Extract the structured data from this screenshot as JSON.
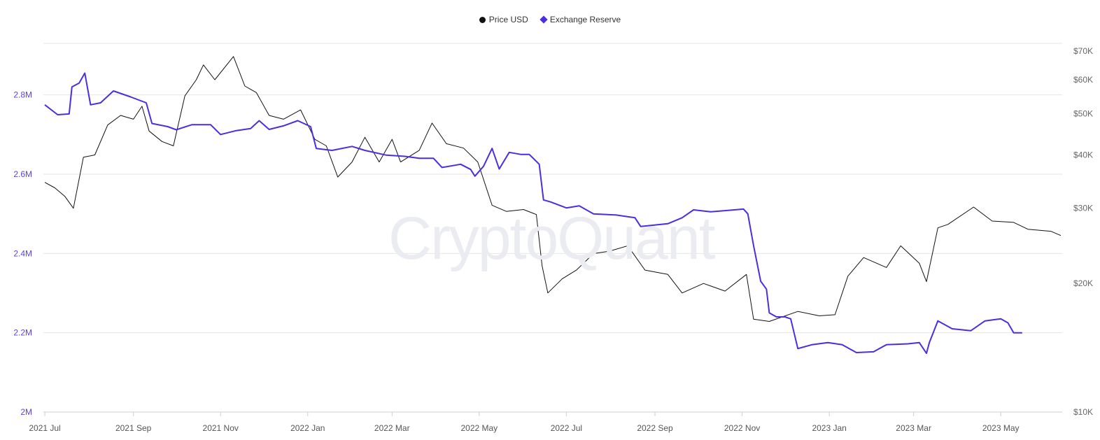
{
  "colors": {
    "price": "#111111",
    "reserve": "#4a2ee0",
    "grid": "#e6e6e6",
    "left_axis_text": "#5b45d4",
    "right_axis_text": "#666666",
    "x_axis_text": "#555555"
  },
  "legend": {
    "price_label": "Price USD",
    "reserve_label": "Exchange Reserve"
  },
  "watermark": "CryptoQuant",
  "chart_data": {
    "type": "line",
    "title": "",
    "x_ticks": [
      "2021 Jul",
      "2021 Sep",
      "2021 Nov",
      "2022 Jan",
      "2022 Mar",
      "2022 May",
      "2022 Jul",
      "2022 Sep",
      "2022 Nov",
      "2023 Jan",
      "2023 Mar",
      "2023 May"
    ],
    "x_tick_dates": [
      "2021-07-01",
      "2021-09-01",
      "2021-11-01",
      "2022-01-01",
      "2022-03-01",
      "2022-05-01",
      "2022-07-01",
      "2022-09-01",
      "2022-11-01",
      "2023-01-01",
      "2023-03-01",
      "2023-05-01"
    ],
    "xlim": [
      "2021-06-30",
      "2023-06-13"
    ],
    "left_axis": {
      "ticks": [
        "2M",
        "2.2M",
        "2.4M",
        "2.6M",
        "2.8M"
      ],
      "ylim": [
        2000000,
        2930000
      ]
    },
    "right_axis": {
      "scale": "log",
      "ticks": [
        "$10K",
        "$20K",
        "$30K",
        "$40K",
        "$50K",
        "$60K",
        "$70K"
      ],
      "tick_values": [
        10000,
        20000,
        30000,
        40000,
        50000,
        60000,
        70000
      ],
      "ylim": [
        10000,
        73000
      ]
    },
    "grid": "horizontal",
    "legend_position": "top-center",
    "series": [
      {
        "name": "Price USD",
        "axis": "right",
        "points": [
          [
            "2021-07-01",
            34500
          ],
          [
            "2021-07-08",
            33500
          ],
          [
            "2021-07-15",
            32000
          ],
          [
            "2021-07-21",
            30000
          ],
          [
            "2021-07-28",
            39500
          ],
          [
            "2021-08-05",
            40000
          ],
          [
            "2021-08-14",
            47000
          ],
          [
            "2021-08-23",
            49500
          ],
          [
            "2021-09-01",
            48500
          ],
          [
            "2021-09-07",
            52000
          ],
          [
            "2021-09-12",
            45500
          ],
          [
            "2021-09-21",
            43000
          ],
          [
            "2021-09-29",
            42000
          ],
          [
            "2021-10-07",
            55000
          ],
          [
            "2021-10-15",
            60000
          ],
          [
            "2021-10-20",
            65000
          ],
          [
            "2021-10-28",
            60000
          ],
          [
            "2021-11-10",
            68000
          ],
          [
            "2021-11-18",
            58000
          ],
          [
            "2021-11-26",
            56000
          ],
          [
            "2021-12-05",
            49500
          ],
          [
            "2021-12-15",
            48500
          ],
          [
            "2021-12-27",
            51000
          ],
          [
            "2022-01-06",
            43500
          ],
          [
            "2022-01-14",
            42000
          ],
          [
            "2022-01-22",
            35500
          ],
          [
            "2022-02-01",
            38500
          ],
          [
            "2022-02-10",
            44000
          ],
          [
            "2022-02-20",
            38500
          ],
          [
            "2022-03-01",
            43500
          ],
          [
            "2022-03-07",
            38500
          ],
          [
            "2022-03-20",
            41000
          ],
          [
            "2022-03-29",
            47500
          ],
          [
            "2022-04-08",
            42500
          ],
          [
            "2022-04-20",
            41500
          ],
          [
            "2022-04-30",
            38500
          ],
          [
            "2022-05-10",
            30500
          ],
          [
            "2022-05-20",
            29500
          ],
          [
            "2022-06-01",
            29800
          ],
          [
            "2022-06-10",
            29000
          ],
          [
            "2022-06-14",
            22000
          ],
          [
            "2022-06-18",
            19000
          ],
          [
            "2022-06-28",
            20500
          ],
          [
            "2022-07-08",
            21500
          ],
          [
            "2022-07-20",
            23500
          ],
          [
            "2022-07-31",
            23800
          ],
          [
            "2022-08-13",
            24500
          ],
          [
            "2022-08-25",
            21500
          ],
          [
            "2022-09-10",
            21000
          ],
          [
            "2022-09-20",
            19000
          ],
          [
            "2022-10-05",
            20000
          ],
          [
            "2022-10-20",
            19200
          ],
          [
            "2022-11-04",
            21000
          ],
          [
            "2022-11-09",
            16500
          ],
          [
            "2022-11-20",
            16300
          ],
          [
            "2022-12-10",
            17200
          ],
          [
            "2022-12-25",
            16800
          ],
          [
            "2023-01-05",
            16900
          ],
          [
            "2023-01-14",
            20800
          ],
          [
            "2023-01-25",
            23000
          ],
          [
            "2023-02-10",
            21800
          ],
          [
            "2023-02-20",
            24500
          ],
          [
            "2023-03-05",
            22300
          ],
          [
            "2023-03-10",
            20200
          ],
          [
            "2023-03-18",
            27000
          ],
          [
            "2023-03-25",
            27500
          ],
          [
            "2023-04-12",
            30200
          ],
          [
            "2023-04-25",
            28000
          ],
          [
            "2023-05-10",
            27800
          ],
          [
            "2023-05-20",
            26800
          ],
          [
            "2023-06-05",
            26500
          ],
          [
            "2023-06-12",
            25900
          ]
        ]
      },
      {
        "name": "Exchange Reserve",
        "axis": "left",
        "points": [
          [
            "2021-07-01",
            2775000
          ],
          [
            "2021-07-10",
            2750000
          ],
          [
            "2021-07-18",
            2752000
          ],
          [
            "2021-07-20",
            2820000
          ],
          [
            "2021-07-25",
            2830000
          ],
          [
            "2021-07-29",
            2855000
          ],
          [
            "2021-08-02",
            2775000
          ],
          [
            "2021-08-09",
            2780000
          ],
          [
            "2021-08-18",
            2810000
          ],
          [
            "2021-08-30",
            2795000
          ],
          [
            "2021-09-10",
            2780000
          ],
          [
            "2021-09-14",
            2728000
          ],
          [
            "2021-09-25",
            2720000
          ],
          [
            "2021-10-01",
            2712000
          ],
          [
            "2021-10-12",
            2725000
          ],
          [
            "2021-10-25",
            2725000
          ],
          [
            "2021-11-01",
            2700000
          ],
          [
            "2021-11-12",
            2710000
          ],
          [
            "2021-11-22",
            2715000
          ],
          [
            "2021-11-28",
            2735000
          ],
          [
            "2021-12-05",
            2713000
          ],
          [
            "2021-12-15",
            2722000
          ],
          [
            "2021-12-25",
            2735000
          ],
          [
            "2022-01-03",
            2720000
          ],
          [
            "2022-01-07",
            2665000
          ],
          [
            "2022-01-18",
            2660000
          ],
          [
            "2022-02-01",
            2670000
          ],
          [
            "2022-02-10",
            2660000
          ],
          [
            "2022-02-25",
            2648000
          ],
          [
            "2022-03-10",
            2645000
          ],
          [
            "2022-03-20",
            2640000
          ],
          [
            "2022-03-30",
            2640000
          ],
          [
            "2022-04-05",
            2617000
          ],
          [
            "2022-04-18",
            2625000
          ],
          [
            "2022-04-25",
            2612000
          ],
          [
            "2022-04-28",
            2595000
          ],
          [
            "2022-05-04",
            2620000
          ],
          [
            "2022-05-10",
            2665000
          ],
          [
            "2022-05-15",
            2613000
          ],
          [
            "2022-05-22",
            2655000
          ],
          [
            "2022-05-30",
            2650000
          ],
          [
            "2022-06-05",
            2650000
          ],
          [
            "2022-06-12",
            2625000
          ],
          [
            "2022-06-15",
            2535000
          ],
          [
            "2022-06-20",
            2530000
          ],
          [
            "2022-07-01",
            2515000
          ],
          [
            "2022-07-10",
            2520000
          ],
          [
            "2022-07-20",
            2500000
          ],
          [
            "2022-08-05",
            2497000
          ],
          [
            "2022-08-18",
            2490000
          ],
          [
            "2022-08-22",
            2468000
          ],
          [
            "2022-09-10",
            2475000
          ],
          [
            "2022-09-20",
            2490000
          ],
          [
            "2022-09-28",
            2510000
          ],
          [
            "2022-10-10",
            2505000
          ],
          [
            "2022-10-20",
            2508000
          ],
          [
            "2022-11-02",
            2512000
          ],
          [
            "2022-11-05",
            2500000
          ],
          [
            "2022-11-09",
            2420000
          ],
          [
            "2022-11-14",
            2330000
          ],
          [
            "2022-11-18",
            2310000
          ],
          [
            "2022-11-20",
            2250000
          ],
          [
            "2022-11-25",
            2240000
          ],
          [
            "2022-12-01",
            2240000
          ],
          [
            "2022-12-05",
            2235000
          ],
          [
            "2022-12-10",
            2160000
          ],
          [
            "2022-12-20",
            2170000
          ],
          [
            "2022-12-31",
            2175000
          ],
          [
            "2023-01-10",
            2170000
          ],
          [
            "2023-01-20",
            2150000
          ],
          [
            "2023-02-01",
            2152000
          ],
          [
            "2023-02-10",
            2170000
          ],
          [
            "2023-02-25",
            2172000
          ],
          [
            "2023-03-05",
            2175000
          ],
          [
            "2023-03-10",
            2148000
          ],
          [
            "2023-03-12",
            2175000
          ],
          [
            "2023-03-18",
            2230000
          ],
          [
            "2023-03-28",
            2210000
          ],
          [
            "2023-04-10",
            2205000
          ],
          [
            "2023-04-20",
            2230000
          ],
          [
            "2023-05-01",
            2235000
          ],
          [
            "2023-05-06",
            2225000
          ],
          [
            "2023-05-10",
            2200000
          ],
          [
            "2023-05-16",
            2200000
          ]
        ]
      }
    ]
  }
}
